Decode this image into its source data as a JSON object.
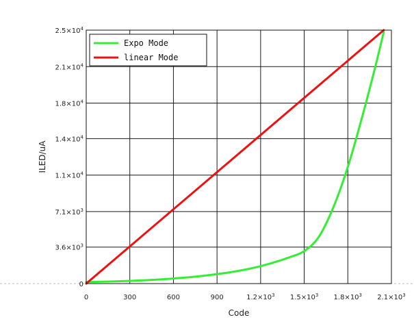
{
  "chart_data": {
    "type": "line",
    "title": "",
    "xlabel": "Code",
    "ylabel": "ILED/uA",
    "xlim": [
      0,
      2100
    ],
    "ylim": [
      0,
      25000
    ],
    "grid": true,
    "legend_position": "top-left",
    "x_ticks": [
      {
        "value": 0,
        "base": "0",
        "exp": ""
      },
      {
        "value": 300,
        "base": "300",
        "exp": ""
      },
      {
        "value": 600,
        "base": "600",
        "exp": ""
      },
      {
        "value": 900,
        "base": "900",
        "exp": ""
      },
      {
        "value": 1200,
        "base": "1.2×10",
        "exp": "3"
      },
      {
        "value": 1500,
        "base": "1.5×10",
        "exp": "3"
      },
      {
        "value": 1800,
        "base": "1.8×10",
        "exp": "3"
      },
      {
        "value": 2100,
        "base": "2.1×10",
        "exp": "3"
      }
    ],
    "y_ticks": [
      {
        "value": 0,
        "base": "0",
        "exp": ""
      },
      {
        "value": 3600,
        "base": "3.6×10",
        "exp": "3"
      },
      {
        "value": 7100,
        "base": "7.1×10",
        "exp": "3"
      },
      {
        "value": 10700,
        "base": "1.1×10",
        "exp": "4"
      },
      {
        "value": 14300,
        "base": "1.4×10",
        "exp": "4"
      },
      {
        "value": 17800,
        "base": "1.8×10",
        "exp": "4"
      },
      {
        "value": 21400,
        "base": "2.1×10",
        "exp": "4"
      },
      {
        "value": 25000,
        "base": "2.5×10",
        "exp": "4"
      }
    ],
    "series": [
      {
        "name": "Expo Mode",
        "color": "#33ee33",
        "x": [
          0,
          200,
          400,
          600,
          800,
          1000,
          1200,
          1400,
          1500,
          1600,
          1700,
          1800,
          1900,
          2000,
          2047
        ],
        "y": [
          150,
          220,
          330,
          500,
          760,
          1140,
          1720,
          2600,
          3200,
          4600,
          7500,
          11500,
          16500,
          22000,
          24800
        ]
      },
      {
        "name": "linear Mode",
        "color": "#ee1111",
        "x": [
          0,
          2047
        ],
        "y": [
          0,
          25000
        ]
      }
    ]
  }
}
